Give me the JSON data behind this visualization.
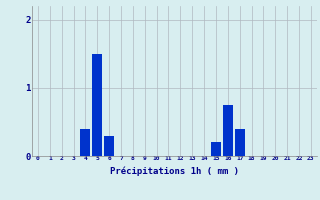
{
  "hours": [
    0,
    1,
    2,
    3,
    4,
    5,
    6,
    7,
    8,
    9,
    10,
    11,
    12,
    13,
    14,
    15,
    16,
    17,
    18,
    19,
    20,
    21,
    22,
    23
  ],
  "values": [
    0,
    0,
    0,
    0,
    0.4,
    1.5,
    0.3,
    0,
    0,
    0,
    0,
    0,
    0,
    0,
    0,
    0.2,
    0.75,
    0.4,
    0,
    0,
    0,
    0,
    0,
    0
  ],
  "bar_color": "#0033cc",
  "background_color": "#d8eef0",
  "grid_color": "#b0b8c0",
  "xlabel": "Précipitations 1h ( mm )",
  "xlabel_color": "#00008b",
  "tick_color": "#00008b",
  "yticks": [
    0,
    1,
    2
  ],
  "ylim": [
    0,
    2.2
  ],
  "xlim": [
    -0.5,
    23.5
  ]
}
